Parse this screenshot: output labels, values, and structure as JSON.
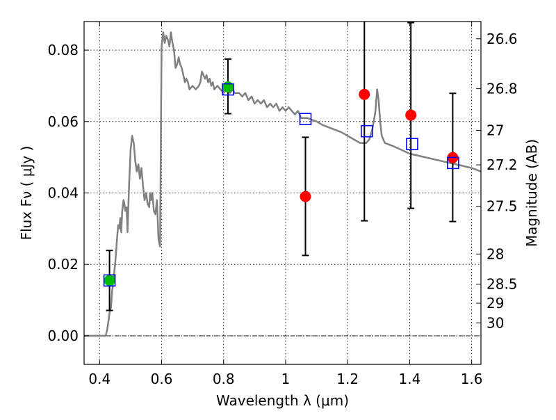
{
  "chart_data": {
    "type": "scatter",
    "xlabel": "Wavelength  λ (μm)",
    "ylabel": "Flux  Fν ( μJy )",
    "y2label": "Magnitude (AB)",
    "xlim": [
      0.35,
      1.63
    ],
    "ylim": [
      -0.008,
      0.088
    ],
    "grid": true,
    "x_ticks": [
      0.4,
      0.6,
      0.8,
      1.0,
      1.2,
      1.4,
      1.6
    ],
    "x_tick_labels": [
      "0.4",
      "0.6",
      "0.8",
      "1",
      "1.2",
      "1.4",
      "1.6"
    ],
    "y_ticks": [
      0.0,
      0.02,
      0.04,
      0.06,
      0.08
    ],
    "y_tick_labels": [
      "0.00",
      "0.02",
      "0.04",
      "0.06",
      "0.08"
    ],
    "magnitude_ticks": [
      26.6,
      26.8,
      27,
      27.2,
      27.5,
      28,
      28.5,
      29,
      30
    ],
    "magnitude_tick_labels": [
      "26.6",
      "26.8",
      "27",
      "27.2",
      "27.5",
      "28",
      "28.5",
      "29",
      "30"
    ],
    "series": [
      {
        "kind": "sed_model_line",
        "color": "#808080",
        "x": [
          0.35,
          0.36,
          0.37,
          0.38,
          0.39,
          0.4,
          0.41,
          0.42,
          0.425,
          0.43,
          0.433,
          0.437,
          0.44,
          0.445,
          0.45,
          0.453,
          0.456,
          0.46,
          0.463,
          0.467,
          0.47,
          0.473,
          0.477,
          0.48,
          0.483,
          0.487,
          0.49,
          0.495,
          0.5,
          0.505,
          0.51,
          0.515,
          0.52,
          0.525,
          0.53,
          0.535,
          0.54,
          0.545,
          0.55,
          0.555,
          0.56,
          0.563,
          0.566,
          0.57,
          0.575,
          0.58,
          0.585,
          0.59,
          0.595,
          0.6,
          0.605,
          0.61,
          0.615,
          0.62,
          0.625,
          0.63,
          0.635,
          0.64,
          0.643,
          0.645,
          0.65,
          0.655,
          0.66,
          0.665,
          0.67,
          0.675,
          0.68,
          0.685,
          0.69,
          0.7,
          0.71,
          0.72,
          0.725,
          0.73,
          0.735,
          0.74,
          0.745,
          0.75,
          0.755,
          0.76,
          0.765,
          0.77,
          0.78,
          0.79,
          0.8,
          0.81,
          0.82,
          0.83,
          0.835,
          0.84,
          0.85,
          0.86,
          0.87,
          0.88,
          0.89,
          0.9,
          0.91,
          0.92,
          0.93,
          0.94,
          0.95,
          0.96,
          0.97,
          0.98,
          0.99,
          1.0,
          1.01,
          1.02,
          1.03,
          1.04,
          1.05,
          1.07,
          1.1,
          1.12,
          1.15,
          1.18,
          1.2,
          1.22,
          1.24,
          1.26,
          1.27,
          1.28,
          1.29,
          1.295,
          1.3,
          1.305,
          1.31,
          1.32,
          1.35,
          1.4,
          1.45,
          1.5,
          1.55,
          1.6,
          1.63
        ],
        "y": [
          0.0,
          0.0,
          0.0,
          0.0,
          0.0,
          0.0,
          0.0,
          0.0,
          0.002,
          0.005,
          0.007,
          0.008,
          0.012,
          0.016,
          0.02,
          0.023,
          0.027,
          0.031,
          0.03,
          0.033,
          0.029,
          0.035,
          0.038,
          0.037,
          0.035,
          0.036,
          0.029,
          0.042,
          0.052,
          0.056,
          0.054,
          0.049,
          0.046,
          0.048,
          0.044,
          0.047,
          0.042,
          0.038,
          0.04,
          0.037,
          0.036,
          0.04,
          0.038,
          0.04,
          0.035,
          0.034,
          0.038,
          0.027,
          0.025,
          0.081,
          0.085,
          0.082,
          0.084,
          0.083,
          0.081,
          0.085,
          0.082,
          0.08,
          0.077,
          0.075,
          0.076,
          0.078,
          0.076,
          0.075,
          0.073,
          0.071,
          0.072,
          0.071,
          0.069,
          0.07,
          0.069,
          0.07,
          0.071,
          0.074,
          0.073,
          0.072,
          0.073,
          0.071,
          0.072,
          0.07,
          0.071,
          0.069,
          0.07,
          0.069,
          0.068,
          0.069,
          0.068,
          0.069,
          0.068,
          0.068,
          0.068,
          0.067,
          0.068,
          0.066,
          0.067,
          0.065,
          0.066,
          0.065,
          0.066,
          0.064,
          0.065,
          0.064,
          0.065,
          0.063,
          0.064,
          0.063,
          0.064,
          0.063,
          0.062,
          0.063,
          0.061,
          0.061,
          0.06,
          0.059,
          0.058,
          0.057,
          0.056,
          0.055,
          0.054,
          0.054,
          0.055,
          0.058,
          0.063,
          0.069,
          0.066,
          0.06,
          0.056,
          0.054,
          0.053,
          0.051,
          0.05,
          0.049,
          0.048,
          0.047,
          0.046
        ]
      },
      {
        "kind": "photometry_red",
        "color": "#ff0000",
        "x": [
          1.064,
          1.254,
          1.404,
          1.539
        ],
        "y": [
          0.039,
          0.0676,
          0.0618,
          0.0499
        ],
        "yerr_low": [
          0.0225,
          0.0322,
          0.0357,
          0.032
        ],
        "yerr_high": [
          0.0556,
          0.0882,
          0.0877,
          0.0679
        ]
      },
      {
        "kind": "photometry_green",
        "color": "#00bf00",
        "x": [
          0.432,
          0.814
        ],
        "y": [
          0.0155,
          0.0697
        ],
        "yerr_low": [
          0.0071,
          0.0622
        ],
        "yerr_high": [
          0.0239,
          0.0775
        ]
      },
      {
        "kind": "model_bands",
        "color": "#0000ff",
        "x": [
          0.432,
          0.814,
          1.064,
          1.262,
          1.408,
          1.54
        ],
        "y": [
          0.0155,
          0.069,
          0.0607,
          0.0573,
          0.0537,
          0.0484
        ]
      }
    ]
  }
}
